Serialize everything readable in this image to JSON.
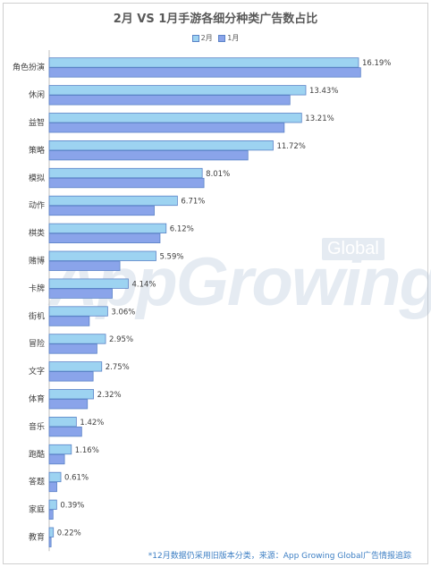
{
  "chart_data": {
    "type": "bar",
    "orientation": "horizontal",
    "title": "2月 VS 1月手游各细分种类广告数占比",
    "legend_position": "top",
    "categories": [
      "角色扮演",
      "休闲",
      "益智",
      "策略",
      "模拟",
      "动作",
      "棋类",
      "赌博",
      "卡牌",
      "街机",
      "冒险",
      "文字",
      "体育",
      "音乐",
      "跑酷",
      "答题",
      "家庭",
      "教育"
    ],
    "series": [
      {
        "name": "2月",
        "values": [
          16.19,
          13.43,
          13.21,
          11.72,
          8.01,
          6.71,
          6.12,
          5.59,
          4.14,
          3.06,
          2.95,
          2.75,
          2.32,
          1.42,
          1.16,
          0.61,
          0.39,
          0.22
        ],
        "labels": [
          "16.19%",
          "13.43%",
          "13.21%",
          "11.72%",
          "8.01%",
          "6.71%",
          "6.12%",
          "5.59%",
          "4.14%",
          "3.06%",
          "2.95%",
          "2.75%",
          "2.32%",
          "1.42%",
          "1.16%",
          "0.61%",
          "0.39%",
          "0.22%"
        ],
        "color": "#9dd3f1"
      },
      {
        "name": "1月",
        "values": [
          16.3,
          12.6,
          12.3,
          10.4,
          8.1,
          5.5,
          5.8,
          3.7,
          3.3,
          2.1,
          2.5,
          2.3,
          2.0,
          1.7,
          0.8,
          0.4,
          0.2,
          0.1
        ],
        "color": "#8aa4ea"
      }
    ],
    "xlim": [
      0,
      16.8
    ],
    "grid": false
  },
  "watermark": {
    "text": "AppGrowing",
    "badge": "Global"
  },
  "footnote": "*12月数据仍采用旧版本分类，来源：App Growing Global广告情报追踪"
}
